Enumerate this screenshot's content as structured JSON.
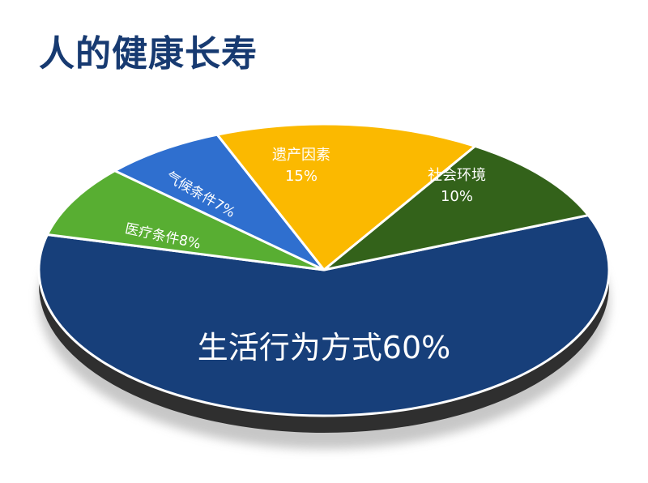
{
  "chart_data": {
    "type": "pie",
    "title": "人的健康长寿",
    "slices": [
      {
        "label": "生活行为方式",
        "value": 60,
        "display": "生活行为方式60%",
        "color": "#173f7a"
      },
      {
        "label": "医疗条件",
        "value": 8,
        "display": "医疗条件8%",
        "color": "#58ae32"
      },
      {
        "label": "气候条件",
        "value": 7,
        "display": "气候条件7%",
        "color": "#2f6fcf"
      },
      {
        "label": "遗产因素",
        "value": 15,
        "display_line1": "遗产因素",
        "display_line2": "15%",
        "color": "#fbb900"
      },
      {
        "label": "社会环境",
        "value": 10,
        "display_line1": "社会环境",
        "display_line2": "10%",
        "color": "#33621a"
      }
    ]
  }
}
